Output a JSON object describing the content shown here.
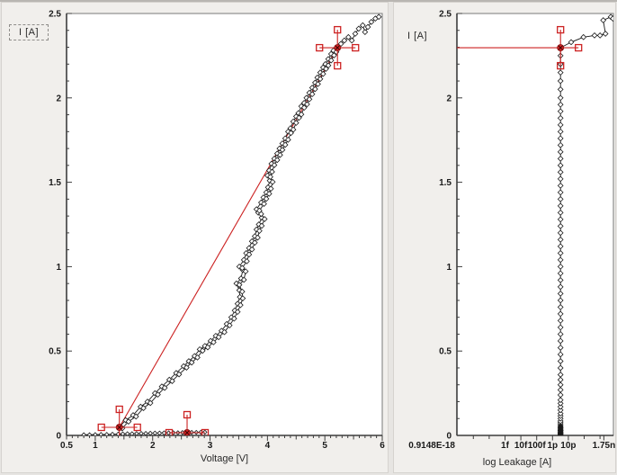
{
  "window": {
    "background": "#e7e5e2",
    "panel_background": "#f1efec"
  },
  "colors": {
    "curve": "#1a1a1a",
    "cursor": "#cc2222",
    "plot_border": "#787878",
    "axis": "#3d3d3d",
    "tick_text": "#1a1a1a"
  },
  "chart_data": [
    {
      "type": "line",
      "title": "",
      "y_label": "I [A]",
      "x_label": "Voltage [V]",
      "x_scale": "linear",
      "xlim": [
        0.5,
        6
      ],
      "ylim": [
        0,
        2.5
      ],
      "grid": false,
      "legend": "none",
      "x_ticks": [
        {
          "v": 0.5,
          "label": "0.5"
        },
        {
          "v": 1,
          "label": "1"
        },
        {
          "v": 2,
          "label": "2"
        },
        {
          "v": 3,
          "label": "3"
        },
        {
          "v": 4,
          "label": "4"
        },
        {
          "v": 5,
          "label": "5"
        },
        {
          "v": 6,
          "label": "6"
        }
      ],
      "y_ticks": [
        {
          "v": 0,
          "label": "0"
        },
        {
          "v": 0.5,
          "label": "0.5"
        },
        {
          "v": 1,
          "label": "1"
        },
        {
          "v": 1.5,
          "label": "1.5"
        },
        {
          "v": 2,
          "label": "2"
        },
        {
          "v": 2.5,
          "label": "2.5"
        }
      ],
      "series": [
        {
          "name": "low-current-sweep",
          "marker": "diamond",
          "marker_size": 2.2,
          "points": [
            [
              0.8,
              0.004
            ],
            [
              0.9,
              0.004
            ],
            [
              1.0,
              0.005
            ],
            [
              1.1,
              0.006
            ],
            [
              1.2,
              0.006
            ],
            [
              1.3,
              0.007
            ],
            [
              1.4,
              0.008
            ],
            [
              1.48,
              0.009
            ],
            [
              1.56,
              0.01
            ],
            [
              1.64,
              0.01
            ],
            [
              1.72,
              0.011
            ],
            [
              1.8,
              0.012
            ],
            [
              1.88,
              0.012
            ],
            [
              1.96,
              0.013
            ],
            [
              2.04,
              0.014
            ],
            [
              2.12,
              0.014
            ],
            [
              2.2,
              0.015
            ],
            [
              2.28,
              0.015
            ],
            [
              2.36,
              0.016
            ],
            [
              2.44,
              0.016
            ],
            [
              2.52,
              0.017
            ],
            [
              2.6,
              0.017
            ],
            [
              2.68,
              0.018
            ],
            [
              2.76,
              0.018
            ],
            [
              2.84,
              0.019
            ],
            [
              2.91,
              0.019
            ]
          ]
        },
        {
          "name": "iv-up-sweep",
          "marker": "diamond",
          "marker_size": 2.8,
          "points": [
            [
              1.42,
              0.05
            ],
            [
              1.53,
              0.09
            ],
            [
              1.66,
              0.12
            ],
            [
              1.79,
              0.17
            ],
            [
              1.91,
              0.2
            ],
            [
              2.04,
              0.25
            ],
            [
              2.16,
              0.29
            ],
            [
              2.29,
              0.33
            ],
            [
              2.41,
              0.37
            ],
            [
              2.54,
              0.41
            ],
            [
              2.63,
              0.44
            ],
            [
              2.73,
              0.47
            ],
            [
              2.82,
              0.51
            ],
            [
              2.91,
              0.53
            ],
            [
              3.01,
              0.56
            ],
            [
              3.1,
              0.59
            ],
            [
              3.2,
              0.62
            ],
            [
              3.29,
              0.66
            ],
            [
              3.37,
              0.7
            ],
            [
              3.43,
              0.74
            ],
            [
              3.48,
              0.78
            ],
            [
              3.52,
              0.82
            ],
            [
              3.51,
              0.86
            ],
            [
              3.46,
              0.9
            ],
            [
              3.54,
              0.93
            ],
            [
              3.57,
              0.98
            ],
            [
              3.51,
              1.0
            ],
            [
              3.59,
              1.04
            ],
            [
              3.63,
              1.08
            ],
            [
              3.68,
              1.11
            ],
            [
              3.73,
              1.15
            ],
            [
              3.78,
              1.18
            ],
            [
              3.81,
              1.22
            ],
            [
              3.85,
              1.25
            ],
            [
              3.9,
              1.29
            ],
            [
              3.84,
              1.32
            ],
            [
              3.81,
              1.34
            ],
            [
              3.89,
              1.38
            ],
            [
              3.93,
              1.41
            ],
            [
              3.98,
              1.44
            ],
            [
              4.01,
              1.47
            ],
            [
              4.04,
              1.51
            ],
            [
              4.0,
              1.54
            ],
            [
              4.03,
              1.57
            ],
            [
              4.07,
              1.61
            ],
            [
              4.12,
              1.64
            ],
            [
              4.17,
              1.67
            ],
            [
              4.21,
              1.7
            ],
            [
              4.26,
              1.73
            ],
            [
              4.31,
              1.76
            ],
            [
              4.36,
              1.8
            ],
            [
              4.4,
              1.82
            ],
            [
              4.45,
              1.86
            ],
            [
              4.5,
              1.89
            ],
            [
              4.54,
              1.91
            ],
            [
              4.59,
              1.95
            ],
            [
              4.64,
              1.97
            ],
            [
              4.68,
              2.0
            ],
            [
              4.73,
              2.03
            ],
            [
              4.78,
              2.06
            ],
            [
              4.83,
              2.09
            ],
            [
              4.87,
              2.12
            ],
            [
              4.92,
              2.15
            ],
            [
              4.97,
              2.18
            ],
            [
              5.01,
              2.2
            ],
            [
              5.06,
              2.23
            ],
            [
              5.11,
              2.26
            ],
            [
              5.15,
              2.28
            ],
            [
              5.22,
              2.3
            ],
            [
              5.28,
              2.32
            ],
            [
              5.34,
              2.34
            ],
            [
              5.41,
              2.36
            ],
            [
              5.47,
              2.34
            ],
            [
              5.53,
              2.38
            ],
            [
              5.59,
              2.41
            ],
            [
              5.66,
              2.43
            ],
            [
              5.7,
              2.39
            ],
            [
              5.75,
              2.42
            ],
            [
              5.81,
              2.45
            ],
            [
              5.88,
              2.47
            ],
            [
              5.94,
              2.48
            ]
          ]
        },
        {
          "name": "iv-return-sweep",
          "marker": "diamond",
          "marker_size": 2.8,
          "offset_of": "iv-up-sweep",
          "v_offset": 0.05,
          "i_offset": -0.008,
          "range": [
            0,
            67
          ]
        }
      ],
      "cursor_line": [
        [
          1.42,
          0.048
        ],
        [
          5.22,
          2.297
        ]
      ],
      "cursors": [
        {
          "x": 1.42,
          "y": 0.048,
          "satellites": [
            "left",
            "right",
            "top",
            "bottom"
          ]
        },
        {
          "x": 2.6,
          "y": 0.016,
          "satellites": [
            "left",
            "right",
            "top",
            "bottom"
          ]
        },
        {
          "x": 5.22,
          "y": 2.297,
          "satellites": [
            "left",
            "right",
            "top",
            "bottom"
          ]
        }
      ]
    },
    {
      "type": "line",
      "title": "",
      "y_label": "I [A]",
      "x_label": "log Leakage [A]",
      "x_scale": "log",
      "xlim": [
        9.148e-19,
        7e-09
      ],
      "ylim": [
        0,
        2.5
      ],
      "grid": false,
      "legend": "none",
      "x_ticks": [
        {
          "v": 9.148e-19,
          "label": "0.9148E-18",
          "anchor": "end"
        },
        {
          "v": 1e-15,
          "label": "1f"
        },
        {
          "v": 1e-14,
          "label": "10f"
        },
        {
          "v": 1e-13,
          "label": "100f"
        },
        {
          "v": 1e-12,
          "label": "1p"
        },
        {
          "v": 1e-11,
          "label": "10p"
        },
        {
          "v": 1.75e-09,
          "label": "1.75n"
        }
      ],
      "x_minor_decades": [
        1e-17,
        1e-16,
        1e-10,
        1e-09
      ],
      "y_ticks": [
        {
          "v": 0,
          "label": "0"
        },
        {
          "v": 0.5,
          "label": "0.5"
        },
        {
          "v": 1,
          "label": "1"
        },
        {
          "v": 1.5,
          "label": "1.5"
        },
        {
          "v": 2,
          "label": "2"
        },
        {
          "v": 2.5,
          "label": "2.5"
        }
      ],
      "series": [
        {
          "name": "leakage-vertical-trace",
          "marker": "diamond",
          "marker_size": 2.8,
          "leakage": 3.2e-12,
          "i_values": [
            0.005,
            0.012,
            0.02,
            0.028,
            0.036,
            0.045,
            0.055,
            0.065,
            0.075,
            0.085,
            0.1,
            0.115,
            0.13,
            0.15,
            0.17,
            0.19,
            0.21,
            0.24,
            0.27,
            0.3,
            0.33,
            0.36,
            0.4,
            0.44,
            0.48,
            0.52,
            0.56,
            0.6,
            0.64,
            0.68,
            0.72,
            0.76,
            0.8,
            0.84,
            0.88,
            0.92,
            0.96,
            1.0,
            1.04,
            1.08,
            1.12,
            1.16,
            1.2,
            1.24,
            1.28,
            1.32,
            1.36,
            1.4,
            1.44,
            1.48,
            1.52,
            1.56,
            1.6,
            1.64,
            1.68,
            1.72,
            1.76,
            1.8,
            1.84,
            1.88,
            1.92,
            1.96,
            2.0,
            2.05,
            2.1,
            2.15,
            2.2,
            2.25,
            2.297
          ],
          "blob_i": [
            0.002,
            0.008,
            0.015,
            0.022,
            0.03,
            0.038,
            0.046,
            0.054
          ]
        },
        {
          "name": "leakage-top-bend",
          "marker": "diamond",
          "marker_size": 2.8,
          "points": [
            [
              3.2e-12,
              2.297
            ],
            [
              1.5e-11,
              2.33
            ],
            [
              9e-11,
              2.36
            ],
            [
              4.5e-10,
              2.37
            ],
            [
              1e-09,
              2.37
            ],
            [
              2.2e-09,
              2.38
            ],
            [
              1.6e-09,
              2.46
            ],
            [
              4.8e-09,
              2.48
            ],
            [
              6.5e-09,
              2.47
            ]
          ]
        }
      ],
      "cursor_hline": {
        "from_left_edge": true,
        "y": 2.297
      },
      "cursors": [
        {
          "x": 3.2e-12,
          "y": 2.297,
          "satellites": [
            "top",
            "bottom",
            "right"
          ]
        }
      ]
    }
  ]
}
